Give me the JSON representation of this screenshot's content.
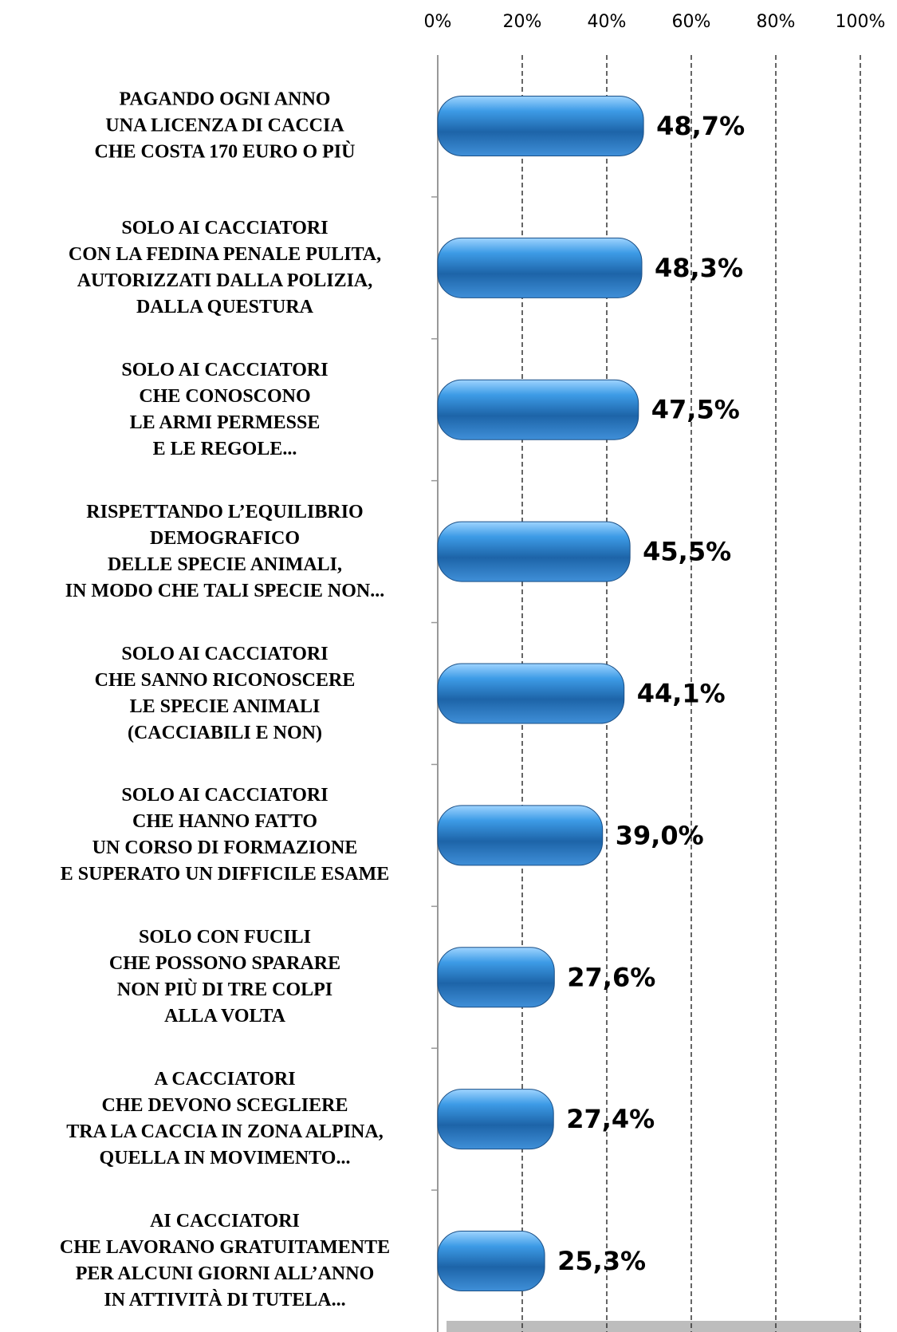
{
  "chart_data": {
    "type": "barh",
    "categories": [
      "PAGANDO OGNI ANNO\nUNA LICENZA DI CACCIA\nCHE COSTA 170 EURO O PIÙ",
      "SOLO AI CACCIATORI\nCON LA FEDINA PENALE PULITA,\nAUTORIZZATI DALLA POLIZIA,\nDALLA QUESTURA",
      "SOLO AI CACCIATORI\nCHE CONOSCONO\nLE ARMI PERMESSE\nE LE REGOLE...",
      "RISPETTANDO L’EQUILIBRIO\nDEMOGRAFICO\nDELLE SPECIE ANIMALI,\nIN MODO CHE TALI SPECIE NON...",
      "SOLO AI CACCIATORI\nCHE SANNO RICONOSCERE\nLE SPECIE ANIMALI\n(CACCIABILI E NON)",
      "SOLO AI CACCIATORI\nCHE HANNO FATTO\nUN CORSO DI FORMAZIONE\nE SUPERATO UN DIFFICILE ESAME",
      "SOLO CON FUCILI\nCHE POSSONO SPARARE\nNON PIÙ DI TRE COLPI\nALLA VOLTA",
      "A CACCIATORI\nCHE DEVONO SCEGLIERE\nTRA LA CACCIA IN ZONA ALPINA,\nQUELLA IN MOVIMENTO...",
      "AI CACCIATORI\nCHE LAVORANO GRATUITAMENTE\nPER ALCUNI GIORNI ALL’ANNO\nIN ATTIVITÀ DI TUTELA..."
    ],
    "values": [
      48.7,
      48.3,
      47.5,
      45.5,
      44.1,
      39.0,
      27.6,
      27.4,
      25.3
    ],
    "value_labels": [
      "48,7%",
      "48,3%",
      "47,5%",
      "45,5%",
      "44,1%",
      "39,0%",
      "27,6%",
      "27,4%",
      "25,3%"
    ],
    "color": "#2f86d0",
    "xlim": [
      0,
      100
    ],
    "xticks": [
      {
        "value": 0,
        "label": "0%"
      },
      {
        "value": 20,
        "label": "20%"
      },
      {
        "value": 40,
        "label": "40%"
      },
      {
        "value": 60,
        "label": "60%"
      },
      {
        "value": 80,
        "label": "80%"
      },
      {
        "value": 100,
        "label": "100%"
      }
    ],
    "grid": true
  }
}
